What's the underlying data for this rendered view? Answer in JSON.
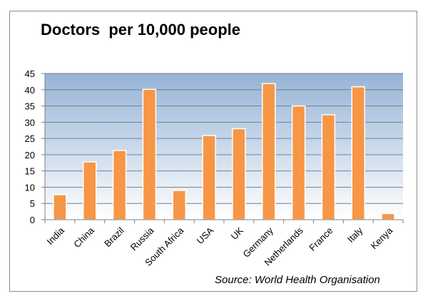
{
  "chart_data": {
    "type": "bar",
    "title": "Doctors  per 10,000 people",
    "categories": [
      "India",
      "China",
      "Brazil",
      "Russia",
      "South Africa",
      "USA",
      "UK",
      "Germany",
      "Netherlands",
      "France",
      "Italy",
      "Kenya"
    ],
    "values": [
      7.7,
      17.8,
      21.3,
      40.1,
      9.0,
      25.9,
      28.0,
      41.9,
      35.0,
      32.3,
      40.9,
      1.9
    ],
    "ylim": [
      0,
      45
    ],
    "yticks": [
      0,
      5,
      10,
      15,
      20,
      25,
      30,
      35,
      40,
      45
    ],
    "grid": true,
    "legend": "none",
    "source": "Source: World Health Organisation",
    "colors": {
      "bar_fill": "#f79646",
      "bar_stroke": "#ffffff",
      "plot_bg_top": "#95b3d7",
      "plot_bg_bottom": "#ffffff",
      "grid": "#7f7f7f",
      "frame": "#8c8c8c"
    }
  }
}
